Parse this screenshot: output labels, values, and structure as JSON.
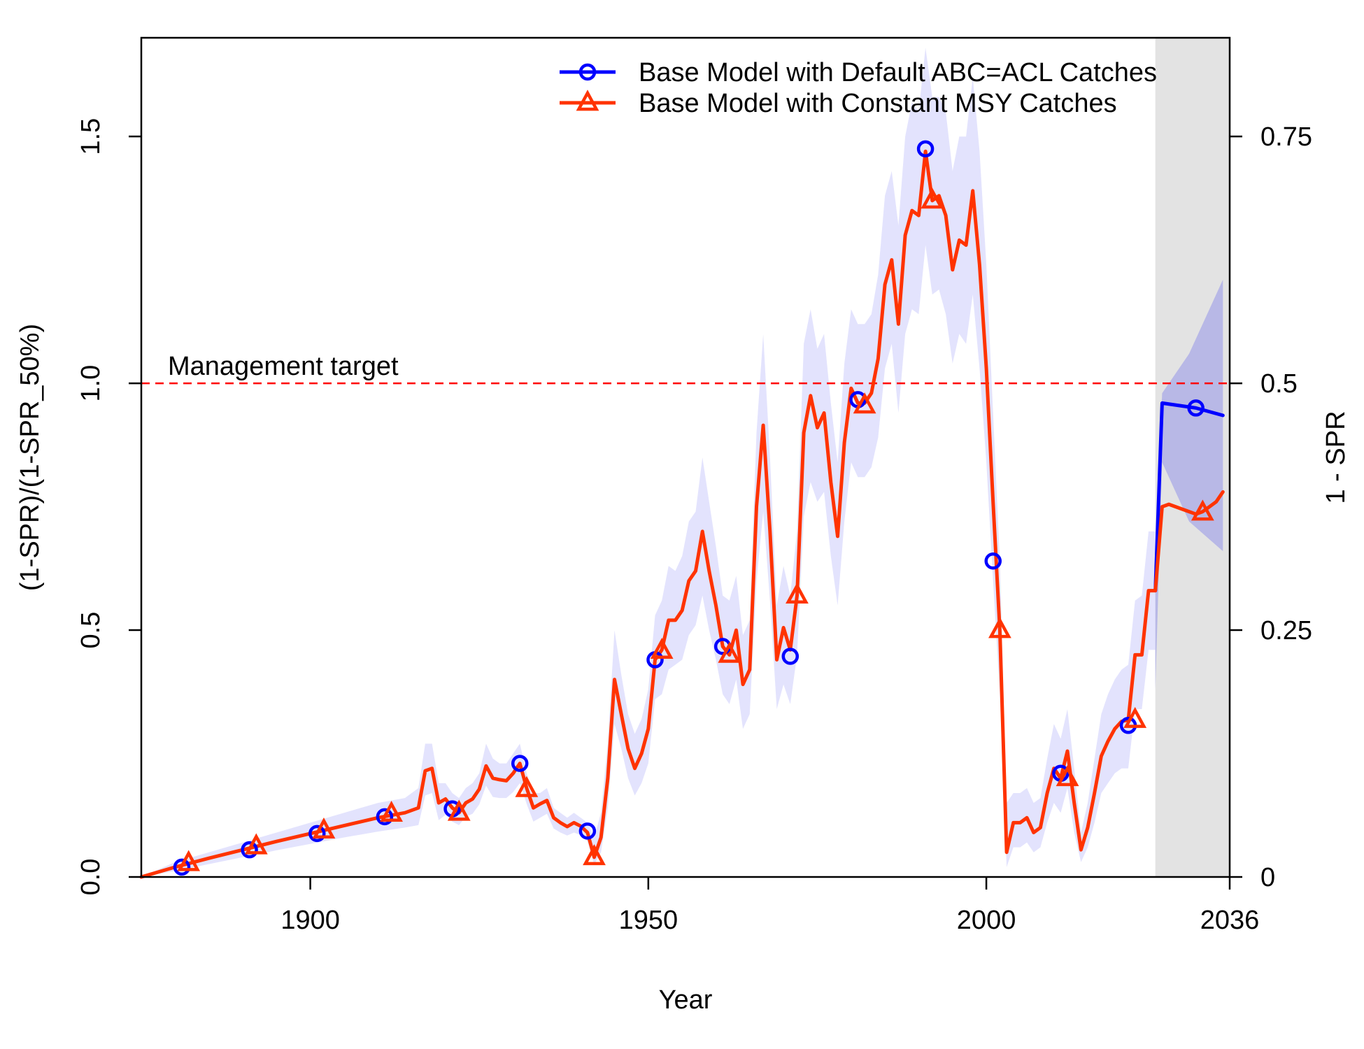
{
  "chart_data": {
    "type": "line",
    "xlabel": "Year",
    "ylabel": "(1-SPR)/(1-SPR_50%)",
    "ylabel_right": "1 - SPR",
    "xlim": [
      1875,
      2036
    ],
    "ylim": [
      0,
      1.7
    ],
    "x_ticks": [
      {
        "value": 1900,
        "label": "1900"
      },
      {
        "value": 1950,
        "label": "1950"
      },
      {
        "value": 2000,
        "label": "2000"
      },
      {
        "value": 2036,
        "label": "2036"
      }
    ],
    "y_ticks_left": [
      {
        "value": 0,
        "label": "0.0"
      },
      {
        "value": 0.5,
        "label": "0.5"
      },
      {
        "value": 1.0,
        "label": "1.0"
      },
      {
        "value": 1.5,
        "label": "1.5"
      }
    ],
    "y_ticks_right": [
      {
        "value": 0,
        "label": "0"
      },
      {
        "value": 0.5,
        "label": "0.25"
      },
      {
        "value": 1.0,
        "label": "0.5"
      },
      {
        "value": 1.5,
        "label": "0.75"
      }
    ],
    "reference_line": {
      "y": 1.0,
      "label": "Management target",
      "color": "#ff0000",
      "style": "dashed"
    },
    "forecast_region": {
      "x_start": 2025,
      "x_end": 2036,
      "color": "#e3e3e3"
    },
    "legend": {
      "position": "top-right"
    },
    "series": [
      {
        "name": "Base Model with Default ABC=ACL Catches",
        "color": "#0000ff",
        "marker": "circle",
        "x": [
          2025,
          2026,
          2031,
          2035
        ],
        "y": [
          0.58,
          0.96,
          0.95,
          0.935
        ],
        "markers": [
          [
            1881,
            0.02
          ],
          [
            1891,
            0.055
          ],
          [
            1901,
            0.088
          ],
          [
            1911,
            0.122
          ],
          [
            1921,
            0.138
          ],
          [
            1931,
            0.23
          ],
          [
            1941,
            0.093
          ],
          [
            1951,
            0.44
          ],
          [
            1961,
            0.467
          ],
          [
            1971,
            0.447
          ],
          [
            1981,
            0.967
          ],
          [
            1991,
            1.475
          ],
          [
            2001,
            0.64
          ],
          [
            2011,
            0.21
          ],
          [
            2021,
            0.307
          ],
          [
            2031,
            0.95
          ]
        ]
      },
      {
        "name": "Base Model with Constant MSY Catches",
        "color": "#ff3300",
        "marker": "triangle",
        "x": [
          1875,
          1880,
          1885,
          1890,
          1895,
          1900,
          1905,
          1910,
          1914,
          1916,
          1917,
          1918,
          1919,
          1920,
          1921,
          1922,
          1923,
          1924,
          1925,
          1926,
          1927,
          1928,
          1929,
          1930,
          1931,
          1932,
          1933,
          1934,
          1935,
          1936,
          1937,
          1938,
          1939,
          1940,
          1941,
          1942,
          1943,
          1944,
          1945,
          1946,
          1947,
          1948,
          1949,
          1950,
          1951,
          1952,
          1953,
          1954,
          1955,
          1956,
          1957,
          1958,
          1959,
          1960,
          1961,
          1962,
          1963,
          1964,
          1965,
          1966,
          1967,
          1968,
          1969,
          1970,
          1971,
          1972,
          1973,
          1974,
          1975,
          1976,
          1977,
          1978,
          1979,
          1980,
          1981,
          1982,
          1983,
          1984,
          1985,
          1986,
          1987,
          1988,
          1989,
          1990,
          1991,
          1992,
          1993,
          1994,
          1995,
          1996,
          1997,
          1998,
          1999,
          2000,
          2001,
          2002,
          2003,
          2004,
          2005,
          2006,
          2007,
          2008,
          2009,
          2010,
          2011,
          2012,
          2013,
          2014,
          2015,
          2016,
          2017,
          2018,
          2019,
          2020,
          2021,
          2022,
          2023,
          2024,
          2025,
          2026,
          2027,
          2028,
          2029,
          2030,
          2031,
          2032,
          2033,
          2034,
          2035
        ],
        "y": [
          0,
          0.02,
          0.038,
          0.055,
          0.072,
          0.088,
          0.104,
          0.12,
          0.13,
          0.14,
          0.215,
          0.22,
          0.15,
          0.158,
          0.14,
          0.13,
          0.15,
          0.158,
          0.178,
          0.225,
          0.2,
          0.197,
          0.195,
          0.21,
          0.23,
          0.18,
          0.14,
          0.148,
          0.155,
          0.12,
          0.11,
          0.102,
          0.11,
          0.103,
          0.09,
          0.04,
          0.08,
          0.2,
          0.4,
          0.33,
          0.26,
          0.22,
          0.25,
          0.3,
          0.44,
          0.46,
          0.52,
          0.52,
          0.54,
          0.6,
          0.62,
          0.7,
          0.62,
          0.55,
          0.467,
          0.45,
          0.5,
          0.39,
          0.42,
          0.75,
          0.915,
          0.7,
          0.44,
          0.505,
          0.46,
          0.57,
          0.9,
          0.975,
          0.91,
          0.94,
          0.8,
          0.69,
          0.88,
          0.99,
          0.96,
          0.96,
          0.98,
          1.05,
          1.2,
          1.25,
          1.12,
          1.3,
          1.35,
          1.34,
          1.47,
          1.37,
          1.38,
          1.34,
          1.23,
          1.29,
          1.28,
          1.39,
          1.24,
          1.03,
          0.76,
          0.5,
          0.05,
          0.11,
          0.11,
          0.12,
          0.09,
          0.1,
          0.17,
          0.22,
          0.2,
          0.255,
          0.15,
          0.055,
          0.1,
          0.17,
          0.245,
          0.275,
          0.3,
          0.315,
          0.318,
          0.45,
          0.45,
          0.58,
          0.58,
          0.75,
          0.755,
          0.75,
          0.745,
          0.74,
          0.735,
          0.74,
          0.75,
          0.76,
          0.78
        ],
        "markers": [
          [
            1882,
            0.028
          ],
          [
            1892,
            0.062
          ],
          [
            1902,
            0.094
          ],
          [
            1912,
            0.128
          ],
          [
            1922,
            0.13
          ],
          [
            1932,
            0.178
          ],
          [
            1942,
            0.04
          ],
          [
            1952,
            0.458
          ],
          [
            1962,
            0.45
          ],
          [
            1972,
            0.57
          ],
          [
            1982,
            0.955
          ],
          [
            1992,
            1.37
          ],
          [
            2002,
            0.5
          ],
          [
            2012,
            0.2
          ],
          [
            2022,
            0.318
          ],
          [
            2032,
            0.738
          ]
        ]
      }
    ],
    "bands": [
      {
        "for_series": "Base Model with Constant MSY Catches",
        "color": "#e3e3fd",
        "x": [
          1875,
          1880,
          1885,
          1890,
          1895,
          1900,
          1905,
          1910,
          1914,
          1916,
          1917,
          1918,
          1919,
          1920,
          1921,
          1922,
          1923,
          1924,
          1925,
          1926,
          1927,
          1928,
          1929,
          1930,
          1931,
          1932,
          1933,
          1934,
          1935,
          1936,
          1937,
          1938,
          1939,
          1940,
          1941,
          1942,
          1943,
          1944,
          1945,
          1946,
          1947,
          1948,
          1949,
          1950,
          1951,
          1952,
          1953,
          1954,
          1955,
          1956,
          1957,
          1958,
          1959,
          1960,
          1961,
          1962,
          1963,
          1964,
          1965,
          1966,
          1967,
          1968,
          1969,
          1970,
          1971,
          1972,
          1973,
          1974,
          1975,
          1976,
          1977,
          1978,
          1979,
          1980,
          1981,
          1982,
          1983,
          1984,
          1985,
          1986,
          1987,
          1988,
          1989,
          1990,
          1991,
          1992,
          1993,
          1994,
          1995,
          1996,
          1997,
          1998,
          1999,
          2000,
          2001,
          2002,
          2003,
          2004,
          2005,
          2006,
          2007,
          2008,
          2009,
          2010,
          2011,
          2012,
          2013,
          2014,
          2015,
          2016,
          2017,
          2018,
          2019,
          2020,
          2021,
          2022,
          2023,
          2024,
          2025
        ],
        "upper": [
          0,
          0.03,
          0.05,
          0.07,
          0.09,
          0.11,
          0.13,
          0.15,
          0.16,
          0.18,
          0.27,
          0.27,
          0.19,
          0.19,
          0.17,
          0.16,
          0.18,
          0.19,
          0.21,
          0.27,
          0.24,
          0.23,
          0.23,
          0.25,
          0.27,
          0.21,
          0.17,
          0.17,
          0.18,
          0.14,
          0.13,
          0.12,
          0.13,
          0.12,
          0.11,
          0.08,
          0.13,
          0.27,
          0.5,
          0.41,
          0.33,
          0.29,
          0.32,
          0.38,
          0.53,
          0.56,
          0.63,
          0.62,
          0.65,
          0.72,
          0.74,
          0.85,
          0.76,
          0.67,
          0.57,
          0.56,
          0.61,
          0.49,
          0.52,
          0.9,
          1.1,
          0.85,
          0.55,
          0.63,
          0.57,
          0.7,
          1.08,
          1.15,
          1.07,
          1.1,
          0.96,
          0.84,
          1.04,
          1.15,
          1.12,
          1.12,
          1.14,
          1.22,
          1.38,
          1.43,
          1.32,
          1.5,
          1.57,
          1.55,
          1.68,
          1.58,
          1.58,
          1.55,
          1.43,
          1.5,
          1.5,
          1.62,
          1.47,
          1.24,
          0.94,
          0.64,
          0.15,
          0.17,
          0.17,
          0.18,
          0.15,
          0.16,
          0.24,
          0.31,
          0.28,
          0.34,
          0.22,
          0.09,
          0.15,
          0.24,
          0.33,
          0.37,
          0.4,
          0.42,
          0.43,
          0.56,
          0.57,
          0.7,
          0.7
        ],
        "lower": [
          0,
          0.012,
          0.026,
          0.04,
          0.054,
          0.067,
          0.08,
          0.092,
          0.1,
          0.105,
          0.165,
          0.17,
          0.115,
          0.126,
          0.112,
          0.105,
          0.122,
          0.128,
          0.147,
          0.185,
          0.162,
          0.16,
          0.16,
          0.172,
          0.19,
          0.148,
          0.112,
          0.12,
          0.128,
          0.098,
          0.09,
          0.084,
          0.09,
          0.085,
          0.072,
          0.025,
          0.05,
          0.14,
          0.31,
          0.26,
          0.2,
          0.165,
          0.19,
          0.23,
          0.36,
          0.37,
          0.42,
          0.43,
          0.44,
          0.49,
          0.51,
          0.57,
          0.5,
          0.44,
          0.37,
          0.35,
          0.4,
          0.3,
          0.33,
          0.6,
          0.74,
          0.56,
          0.34,
          0.39,
          0.35,
          0.45,
          0.73,
          0.8,
          0.76,
          0.78,
          0.65,
          0.55,
          0.72,
          0.84,
          0.81,
          0.81,
          0.83,
          0.89,
          1.03,
          1.08,
          0.94,
          1.1,
          1.15,
          1.14,
          1.28,
          1.18,
          1.19,
          1.14,
          1.04,
          1.1,
          1.08,
          1.18,
          1.03,
          0.84,
          0.6,
          0.37,
          0.02,
          0.06,
          0.06,
          0.07,
          0.05,
          0.06,
          0.11,
          0.15,
          0.13,
          0.18,
          0.09,
          0.03,
          0.06,
          0.11,
          0.17,
          0.19,
          0.21,
          0.22,
          0.22,
          0.34,
          0.34,
          0.46,
          0.46
        ]
      },
      {
        "for_series": "Base Model with Default ABC=ACL Catches",
        "color": "#b8b8e6",
        "x": [
          2025,
          2026,
          2030,
          2035
        ],
        "upper": [
          0.64,
          0.98,
          1.06,
          1.21
        ],
        "lower": [
          0.38,
          0.84,
          0.72,
          0.66
        ]
      }
    ]
  }
}
